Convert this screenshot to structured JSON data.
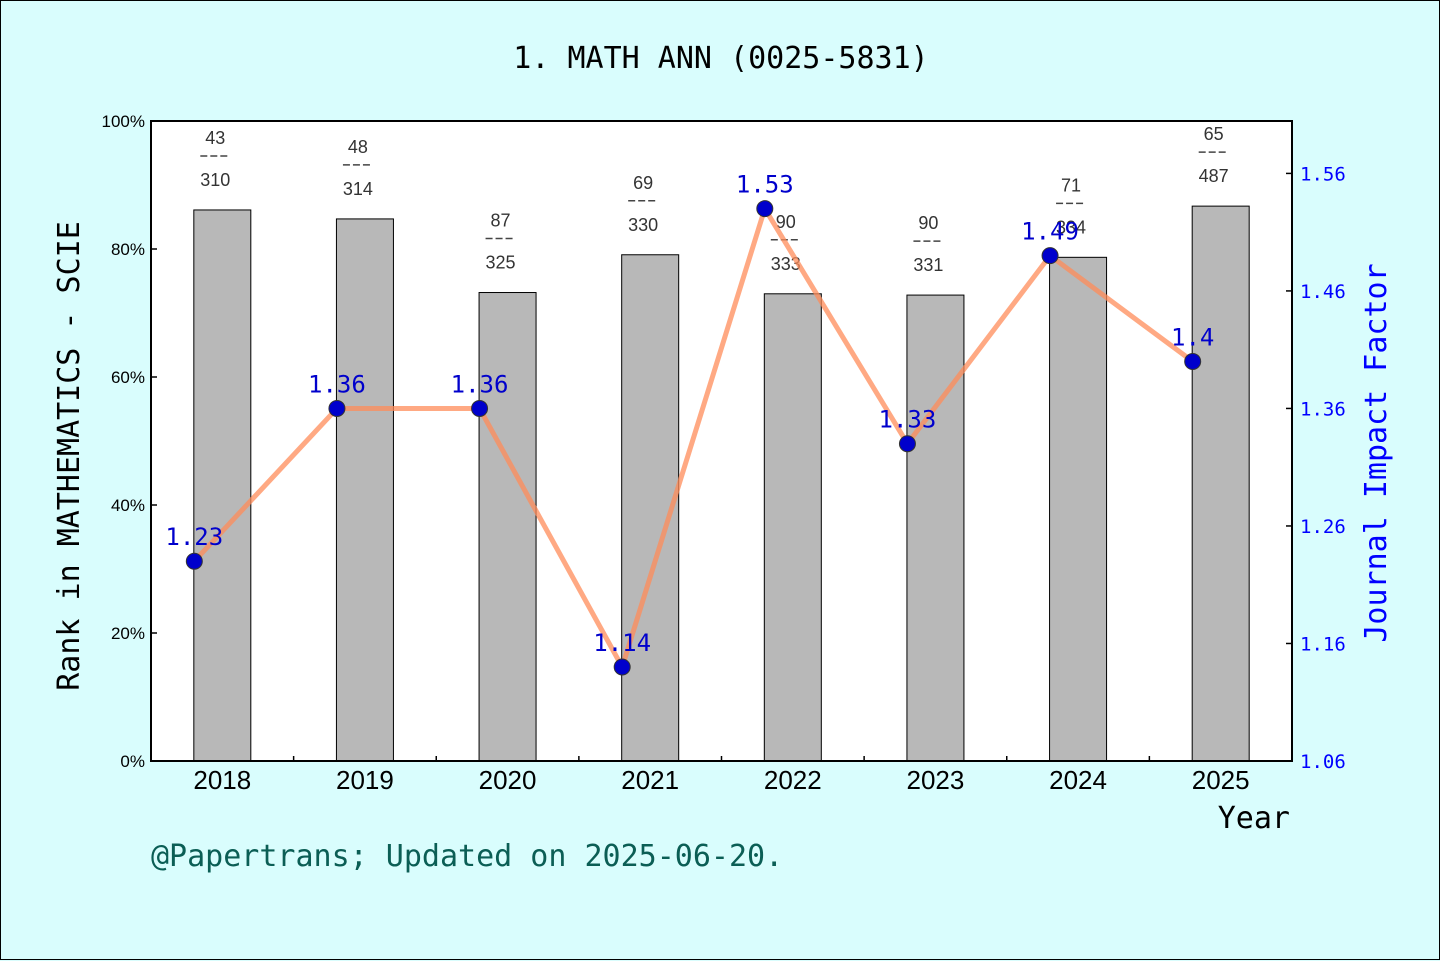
{
  "chart_data": {
    "type": "bar",
    "title": "1. MATH ANN (0025-5831)",
    "xlabel": "Year",
    "ylabel_left": "Rank in MATHEMATICS - SCIE",
    "ylabel_right": "Journal Impact Factor",
    "categories": [
      "2018",
      "2019",
      "2020",
      "2021",
      "2022",
      "2023",
      "2024",
      "2025"
    ],
    "y_left_ticks": [
      "0%",
      "20%",
      "40%",
      "60%",
      "80%",
      "100%"
    ],
    "y_left_range": [
      0,
      100
    ],
    "y_right_ticks": [
      "1.06",
      "1.16",
      "1.26",
      "1.36",
      "1.46",
      "1.56"
    ],
    "y_right_range": [
      1.06,
      1.6046
    ],
    "series": [
      {
        "type": "bar",
        "axis": "left",
        "values": [
          86.1,
          84.7,
          73.2,
          79.1,
          73.0,
          72.8,
          78.7,
          86.7
        ],
        "rank": [
          "43",
          "48",
          "87",
          "69",
          "90",
          "90",
          "71",
          "65"
        ],
        "total": [
          "310",
          "314",
          "325",
          "330",
          "333",
          "331",
          "334",
          "487"
        ],
        "color": "#b8b8b8"
      },
      {
        "type": "line",
        "axis": "right",
        "values": [
          1.23,
          1.36,
          1.36,
          1.14,
          1.53,
          1.33,
          1.49,
          1.4
        ],
        "labels": [
          "1.23",
          "1.36",
          "1.36",
          "1.14",
          "1.53",
          "1.33",
          "1.49",
          "1.4"
        ],
        "color": "#ff8c5a",
        "marker_color": "#0000cc"
      }
    ],
    "grid": false,
    "legend": "none"
  },
  "footer": "@Papertrans; Updated on 2025-06-20."
}
